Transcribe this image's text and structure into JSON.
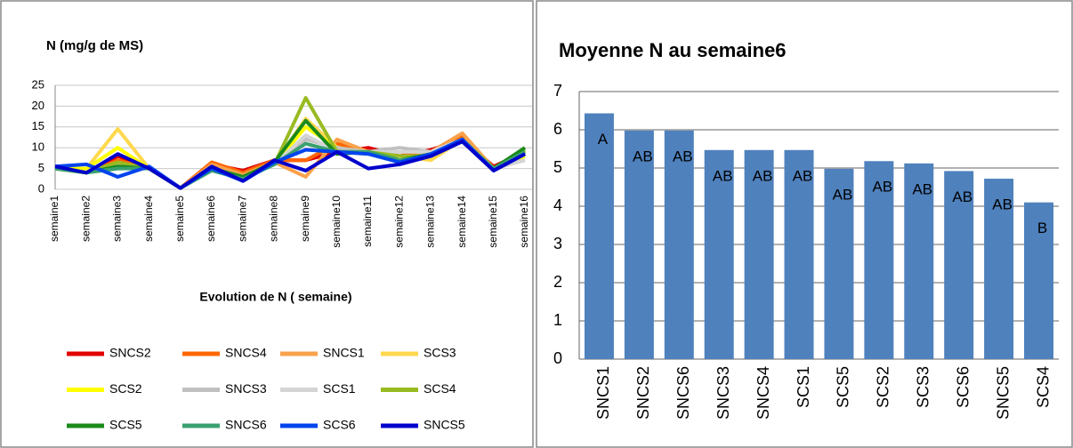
{
  "chart_data": [
    {
      "type": "line",
      "title": "N (mg/g de MS)",
      "x_label": "Evolution de N ( semaine)",
      "categories": [
        "semaine1",
        "semaine2",
        "semaine3",
        "semaine4",
        "semaine5",
        "semaine6",
        "semaine7",
        "semaine8",
        "semaine9",
        "semaine10",
        "semaine11",
        "semaine12",
        "semaine13",
        "semaine14",
        "semaine15",
        "semaine16"
      ],
      "ylim": [
        0,
        25
      ],
      "yticks": [
        0,
        5,
        10,
        15,
        20,
        25
      ],
      "grid": true,
      "series": [
        {
          "name": "SNCS2",
          "color": "#e00000",
          "values": [
            5.5,
            4,
            8,
            5,
            0.3,
            6,
            4.5,
            7,
            7,
            9,
            10,
            8,
            9.5,
            12,
            5.5,
            9
          ]
        },
        {
          "name": "SNCS4",
          "color": "#ff6600",
          "values": [
            5,
            4,
            7,
            5,
            0.3,
            6.5,
            4,
            7,
            7,
            11,
            9,
            8,
            9,
            13,
            5,
            9
          ]
        },
        {
          "name": "SNCS1",
          "color": "#f9a24c",
          "values": [
            5,
            4,
            6,
            5,
            0.3,
            6,
            3.5,
            6.5,
            3,
            12,
            9,
            7,
            9,
            13.5,
            5,
            8.5
          ]
        },
        {
          "name": "SCS3",
          "color": "#ffd84d",
          "values": [
            5,
            5,
            14.5,
            5,
            0.3,
            5,
            3,
            6,
            17,
            10,
            9,
            8,
            7,
            12,
            5,
            8
          ]
        },
        {
          "name": "SCS2",
          "color": "#ffff00",
          "values": [
            5,
            5,
            10,
            5,
            0.3,
            5,
            3,
            6,
            15,
            10,
            9,
            8,
            8,
            12,
            5,
            8
          ]
        },
        {
          "name": "SNCS3",
          "color": "#c0c0c0",
          "values": [
            5,
            4,
            6,
            5,
            0.3,
            5,
            3,
            6,
            12,
            10,
            9,
            10,
            9,
            12,
            5,
            7
          ]
        },
        {
          "name": "SCS1",
          "color": "#d4d4d4",
          "values": [
            5,
            4,
            6,
            5,
            0.3,
            5,
            3,
            6,
            13,
            9,
            9,
            9,
            9,
            12,
            5,
            7
          ]
        },
        {
          "name": "SCS4",
          "color": "#99bb22",
          "values": [
            5,
            4,
            6.5,
            5,
            0.3,
            5,
            3,
            6,
            22,
            9,
            9,
            8,
            8,
            12,
            5,
            9.5
          ]
        },
        {
          "name": "SCS5",
          "color": "#1a8a1a",
          "values": [
            5,
            4,
            5.5,
            5,
            0.3,
            5,
            3,
            6.5,
            16.5,
            8.5,
            9,
            7,
            8.5,
            11.5,
            5,
            10
          ]
        },
        {
          "name": "SNCS6",
          "color": "#3aa070",
          "values": [
            5,
            4,
            5,
            5,
            0.3,
            4.5,
            2.5,
            6,
            11,
            9,
            9,
            7,
            8,
            11.5,
            5,
            9
          ]
        },
        {
          "name": "SCS6",
          "color": "#0044ee",
          "values": [
            5.5,
            6,
            3,
            5.5,
            0.3,
            5,
            2,
            6.5,
            9.5,
            9,
            8.5,
            6.5,
            8.5,
            12,
            4.5,
            8.5
          ]
        },
        {
          "name": "SNCS5",
          "color": "#0000cc",
          "values": [
            5.5,
            4,
            8.5,
            5,
            0.3,
            5.5,
            2,
            7,
            4.5,
            9,
            5,
            6,
            8,
            11.5,
            4.5,
            8.5
          ]
        }
      ]
    },
    {
      "type": "bar",
      "title": "Moyenne N au semaine6",
      "categories": [
        "SNCS1",
        "SNCS2",
        "SNCS6",
        "SNCS3",
        "SNCS4",
        "SCS1",
        "SCS5",
        "SCS2",
        "SCS3",
        "SCS6",
        "SNCS5",
        "SCS4"
      ],
      "values": [
        6.43,
        5.98,
        5.98,
        5.47,
        5.47,
        5.47,
        4.98,
        5.18,
        5.12,
        4.92,
        4.72,
        4.1
      ],
      "group_labels": [
        "A",
        "AB",
        "AB",
        "AB",
        "AB",
        "AB",
        "AB",
        "AB",
        "AB",
        "AB",
        "AB",
        "B"
      ],
      "color": "#4f81bd",
      "ylim": [
        0,
        7
      ],
      "yticks": [
        0,
        1,
        2,
        3,
        4,
        5,
        6,
        7
      ],
      "grid": true
    }
  ]
}
